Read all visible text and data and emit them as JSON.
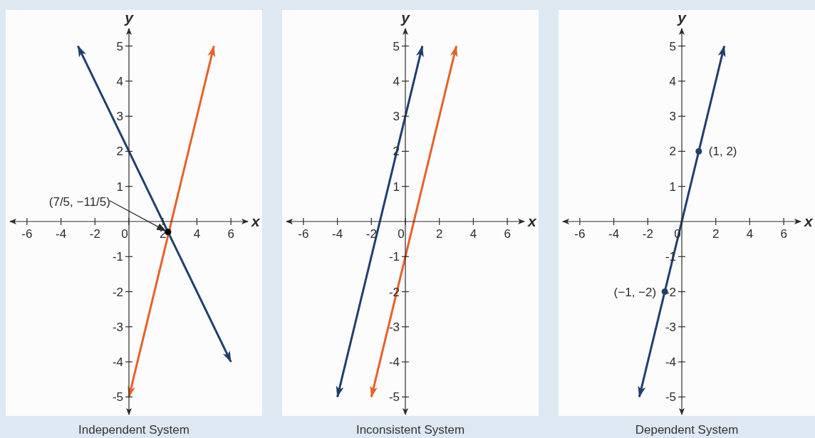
{
  "chart_data": [
    {
      "type": "line",
      "title": "Independent System",
      "xlabel": "x",
      "ylabel": "y",
      "xlim": [
        -7,
        7
      ],
      "ylim": [
        -5.5,
        5.5
      ],
      "xticks": [
        -6,
        -4,
        -2,
        0,
        2,
        4,
        6
      ],
      "yticks": [
        -5,
        -4,
        -3,
        -2,
        -1,
        1,
        2,
        3,
        4,
        5
      ],
      "series": [
        {
          "color": "#213f6e",
          "x": [
            -3,
            6
          ],
          "values": [
            5,
            -4
          ]
        },
        {
          "color": "#e5622a",
          "x": [
            0,
            5
          ],
          "values": [
            -5,
            5
          ]
        },
        {
          "type": "scatter",
          "marker": "circle",
          "color": "#000000",
          "x": [
            2.3
          ],
          "values": [
            -0.3
          ]
        }
      ],
      "annotations": [
        "(7/5, −11/5)"
      ]
    },
    {
      "type": "line",
      "title": "Inconsistent System",
      "xlabel": "x",
      "ylabel": "y",
      "xlim": [
        -7,
        7
      ],
      "ylim": [
        -5.5,
        5.5
      ],
      "xticks": [
        -6,
        -4,
        -2,
        0,
        2,
        4,
        6
      ],
      "yticks": [
        -5,
        -4,
        -3,
        -2,
        -1,
        1,
        2,
        3,
        4,
        5
      ],
      "series": [
        {
          "color": "#213f6e",
          "x": [
            -4,
            1
          ],
          "values": [
            -5,
            5
          ]
        },
        {
          "color": "#e5622a",
          "x": [
            -2,
            3
          ],
          "values": [
            -5,
            5
          ]
        }
      ]
    },
    {
      "type": "line",
      "title": "Dependent System",
      "xlabel": "x",
      "ylabel": "y",
      "xlim": [
        -7,
        7
      ],
      "ylim": [
        -5.5,
        5.5
      ],
      "xticks": [
        -6,
        -4,
        -2,
        0,
        2,
        4,
        6
      ],
      "yticks": [
        -5,
        -4,
        -3,
        -2,
        -1,
        1,
        2,
        3,
        4,
        5
      ],
      "series": [
        {
          "color": "#213f6e",
          "x": [
            -2.5,
            2.5
          ],
          "values": [
            -5,
            5
          ]
        },
        {
          "type": "scatter",
          "marker": "circle",
          "color": "#213f6e",
          "x": [
            -1,
            1
          ],
          "values": [
            -2,
            2
          ]
        }
      ],
      "annotations": [
        {
          "text": "(1, 2)",
          "x": 1,
          "y": 2
        },
        {
          "text": "(−1, −2)",
          "x": -1,
          "y": -2
        }
      ]
    }
  ]
}
